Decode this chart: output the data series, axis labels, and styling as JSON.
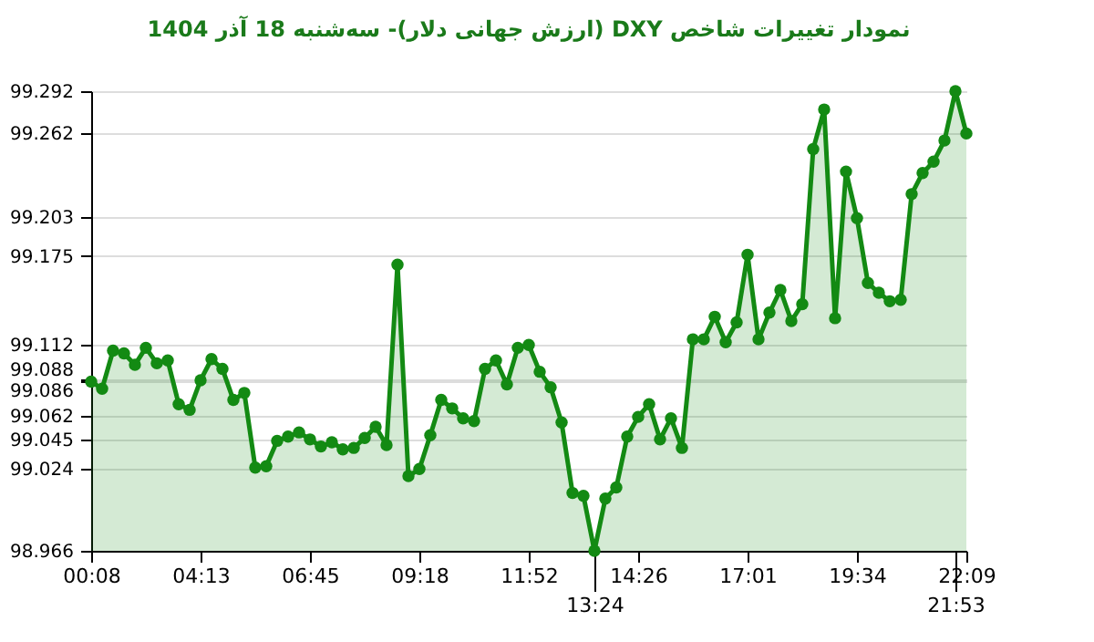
{
  "chart_data": {
    "type": "area",
    "title": "نمودار تغییرات شاخص DXY (ارزش جهانی دلار)- سه‌شنبه  18 آذر 1404",
    "categories": [
      "00:08",
      null,
      null,
      null,
      null,
      null,
      null,
      null,
      null,
      null,
      "04:13",
      null,
      null,
      null,
      null,
      null,
      null,
      null,
      null,
      null,
      "06:45",
      null,
      null,
      null,
      null,
      null,
      null,
      null,
      null,
      null,
      "09:18",
      null,
      null,
      null,
      null,
      null,
      null,
      null,
      null,
      null,
      "11:52",
      null,
      null,
      null,
      null,
      null,
      "13:24",
      null,
      null,
      null,
      "14:26",
      null,
      null,
      null,
      null,
      null,
      null,
      null,
      null,
      null,
      "17:01",
      null,
      null,
      null,
      null,
      null,
      null,
      null,
      null,
      null,
      "19:34",
      null,
      null,
      null,
      null,
      null,
      null,
      null,
      null,
      "21:53",
      "22:09"
    ],
    "series": [
      {
        "color": "#138a13",
        "values": [
          99.086,
          99.081,
          99.108,
          99.106,
          99.098,
          99.11,
          99.099,
          99.101,
          99.07,
          99.066,
          99.087,
          99.102,
          99.095,
          99.073,
          99.078,
          99.025,
          99.026,
          99.044,
          99.047,
          99.05,
          99.045,
          99.04,
          99.043,
          99.038,
          99.039,
          99.046,
          99.054,
          99.041,
          99.169,
          99.019,
          99.024,
          99.048,
          99.073,
          99.067,
          99.06,
          99.058,
          99.095,
          99.101,
          99.084,
          99.11,
          99.112,
          99.093,
          99.082,
          99.057,
          99.007,
          99.005,
          98.966,
          99.003,
          99.011,
          99.047,
          99.061,
          99.07,
          99.045,
          99.06,
          99.039,
          99.116,
          99.116,
          99.132,
          99.114,
          99.128,
          99.176,
          99.116,
          99.135,
          99.151,
          99.129,
          99.141,
          99.251,
          99.279,
          99.131,
          99.235,
          99.202,
          99.156,
          99.149,
          99.143,
          99.144,
          99.219,
          99.234,
          99.242,
          99.257,
          99.292,
          99.262
        ]
      }
    ],
    "ylim": [
      98.966,
      99.292
    ],
    "yticks": [
      98.966,
      99.024,
      99.045,
      99.062,
      99.086,
      99.088,
      99.112,
      99.175,
      99.203,
      99.262,
      99.292
    ],
    "grid": "y",
    "marker": "circle",
    "line_style": "solid"
  }
}
